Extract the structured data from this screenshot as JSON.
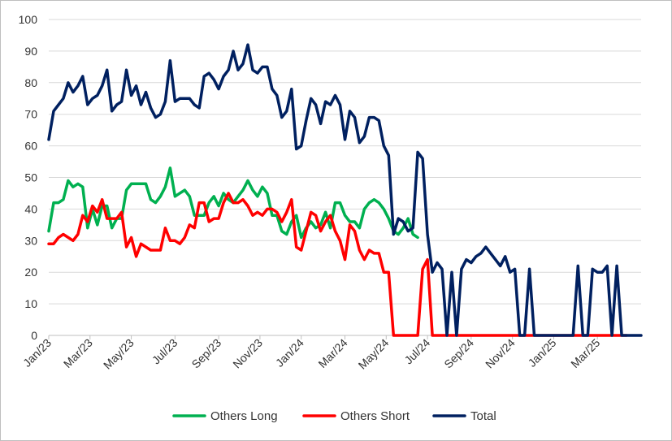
{
  "chart_data": {
    "type": "line",
    "title": "",
    "xlabel": "",
    "ylabel": "",
    "ylim": [
      0,
      100
    ],
    "yticks": [
      0,
      10,
      20,
      30,
      40,
      50,
      60,
      70,
      80,
      90,
      100
    ],
    "x_tick_labels": [
      "Jan/23",
      "Mar/23",
      "May/23",
      "Jul/23",
      "Sep/23",
      "Nov/23",
      "Jan/24",
      "Mar/24",
      "May/24",
      "Jul/24",
      "Sep/24",
      "Nov/24",
      "Jan/25",
      "Mar/25"
    ],
    "x_tick_index": [
      0,
      8.5,
      17,
      26,
      35,
      43.5,
      52,
      61,
      69.5,
      78,
      87,
      95.5,
      104,
      113
    ],
    "grid": "horizontal",
    "legend_position": "bottom",
    "series": [
      {
        "name": "Others Long",
        "color": "#00b050",
        "values": [
          33,
          42,
          42,
          43,
          49,
          47,
          48,
          47,
          34,
          40,
          35,
          41,
          41,
          34,
          37,
          37,
          46,
          48,
          48,
          48,
          48,
          43,
          42,
          44,
          47,
          53,
          44,
          45,
          46,
          44,
          38,
          38,
          38,
          42,
          44,
          41,
          45,
          43,
          42,
          44,
          46,
          49,
          46,
          44,
          47,
          45,
          38,
          38,
          33,
          32,
          36,
          38,
          31,
          34,
          36,
          34,
          35,
          39,
          34,
          42,
          42,
          38,
          36,
          36,
          34,
          40,
          42,
          43,
          42,
          40,
          37,
          33,
          32,
          34,
          37,
          32,
          31
        ]
      },
      {
        "name": "Others Short",
        "color": "#ff0000",
        "values": [
          29,
          29,
          31,
          32,
          31,
          30,
          32,
          38,
          36,
          41,
          39,
          43,
          37,
          37,
          37,
          39,
          28,
          31,
          25,
          29,
          28,
          27,
          27,
          27,
          34,
          30,
          30,
          29,
          31,
          35,
          34,
          42,
          42,
          36,
          37,
          37,
          42,
          45,
          42,
          42,
          43,
          41,
          38,
          39,
          38,
          40,
          40,
          39,
          36,
          39,
          43,
          28,
          27,
          33,
          39,
          38,
          33,
          36,
          38,
          33,
          30,
          24,
          35,
          33,
          27,
          24,
          27,
          26,
          26,
          20,
          20,
          0,
          0,
          0,
          0,
          0,
          0,
          21,
          24,
          0,
          0,
          0,
          0,
          0,
          0,
          0,
          0,
          0,
          0,
          0,
          0,
          0,
          0,
          0,
          0,
          0,
          0,
          0,
          0,
          0,
          0,
          0,
          0,
          0,
          0,
          0,
          0,
          0,
          0,
          0,
          0,
          0,
          0,
          0,
          0,
          0,
          0,
          0,
          0,
          0
        ]
      },
      {
        "name": "Total",
        "color": "#002060",
        "values": [
          62,
          71,
          73,
          75,
          80,
          77,
          79,
          82,
          73,
          75,
          76,
          79,
          84,
          71,
          73,
          74,
          84,
          76,
          79,
          73,
          77,
          72,
          69,
          70,
          74,
          87,
          74,
          75,
          75,
          75,
          73,
          72,
          82,
          83,
          81,
          78,
          82,
          84,
          90,
          84,
          86,
          92,
          84,
          83,
          85,
          85,
          78,
          76,
          69,
          71,
          78,
          59,
          60,
          68,
          75,
          73,
          67,
          74,
          73,
          76,
          73,
          62,
          71,
          69,
          61,
          63,
          69,
          69,
          68,
          60,
          57,
          32,
          37,
          36,
          33,
          34,
          58,
          56,
          32,
          20,
          23,
          21,
          0,
          20,
          0,
          21,
          24,
          23,
          25,
          26,
          28,
          26,
          24,
          22,
          25,
          20,
          21,
          0,
          0,
          21,
          0,
          0,
          0,
          0,
          0,
          0,
          0,
          0,
          0,
          22,
          0,
          0,
          21,
          20,
          20,
          22,
          0,
          22,
          0,
          0,
          0,
          0,
          0
        ]
      }
    ]
  }
}
